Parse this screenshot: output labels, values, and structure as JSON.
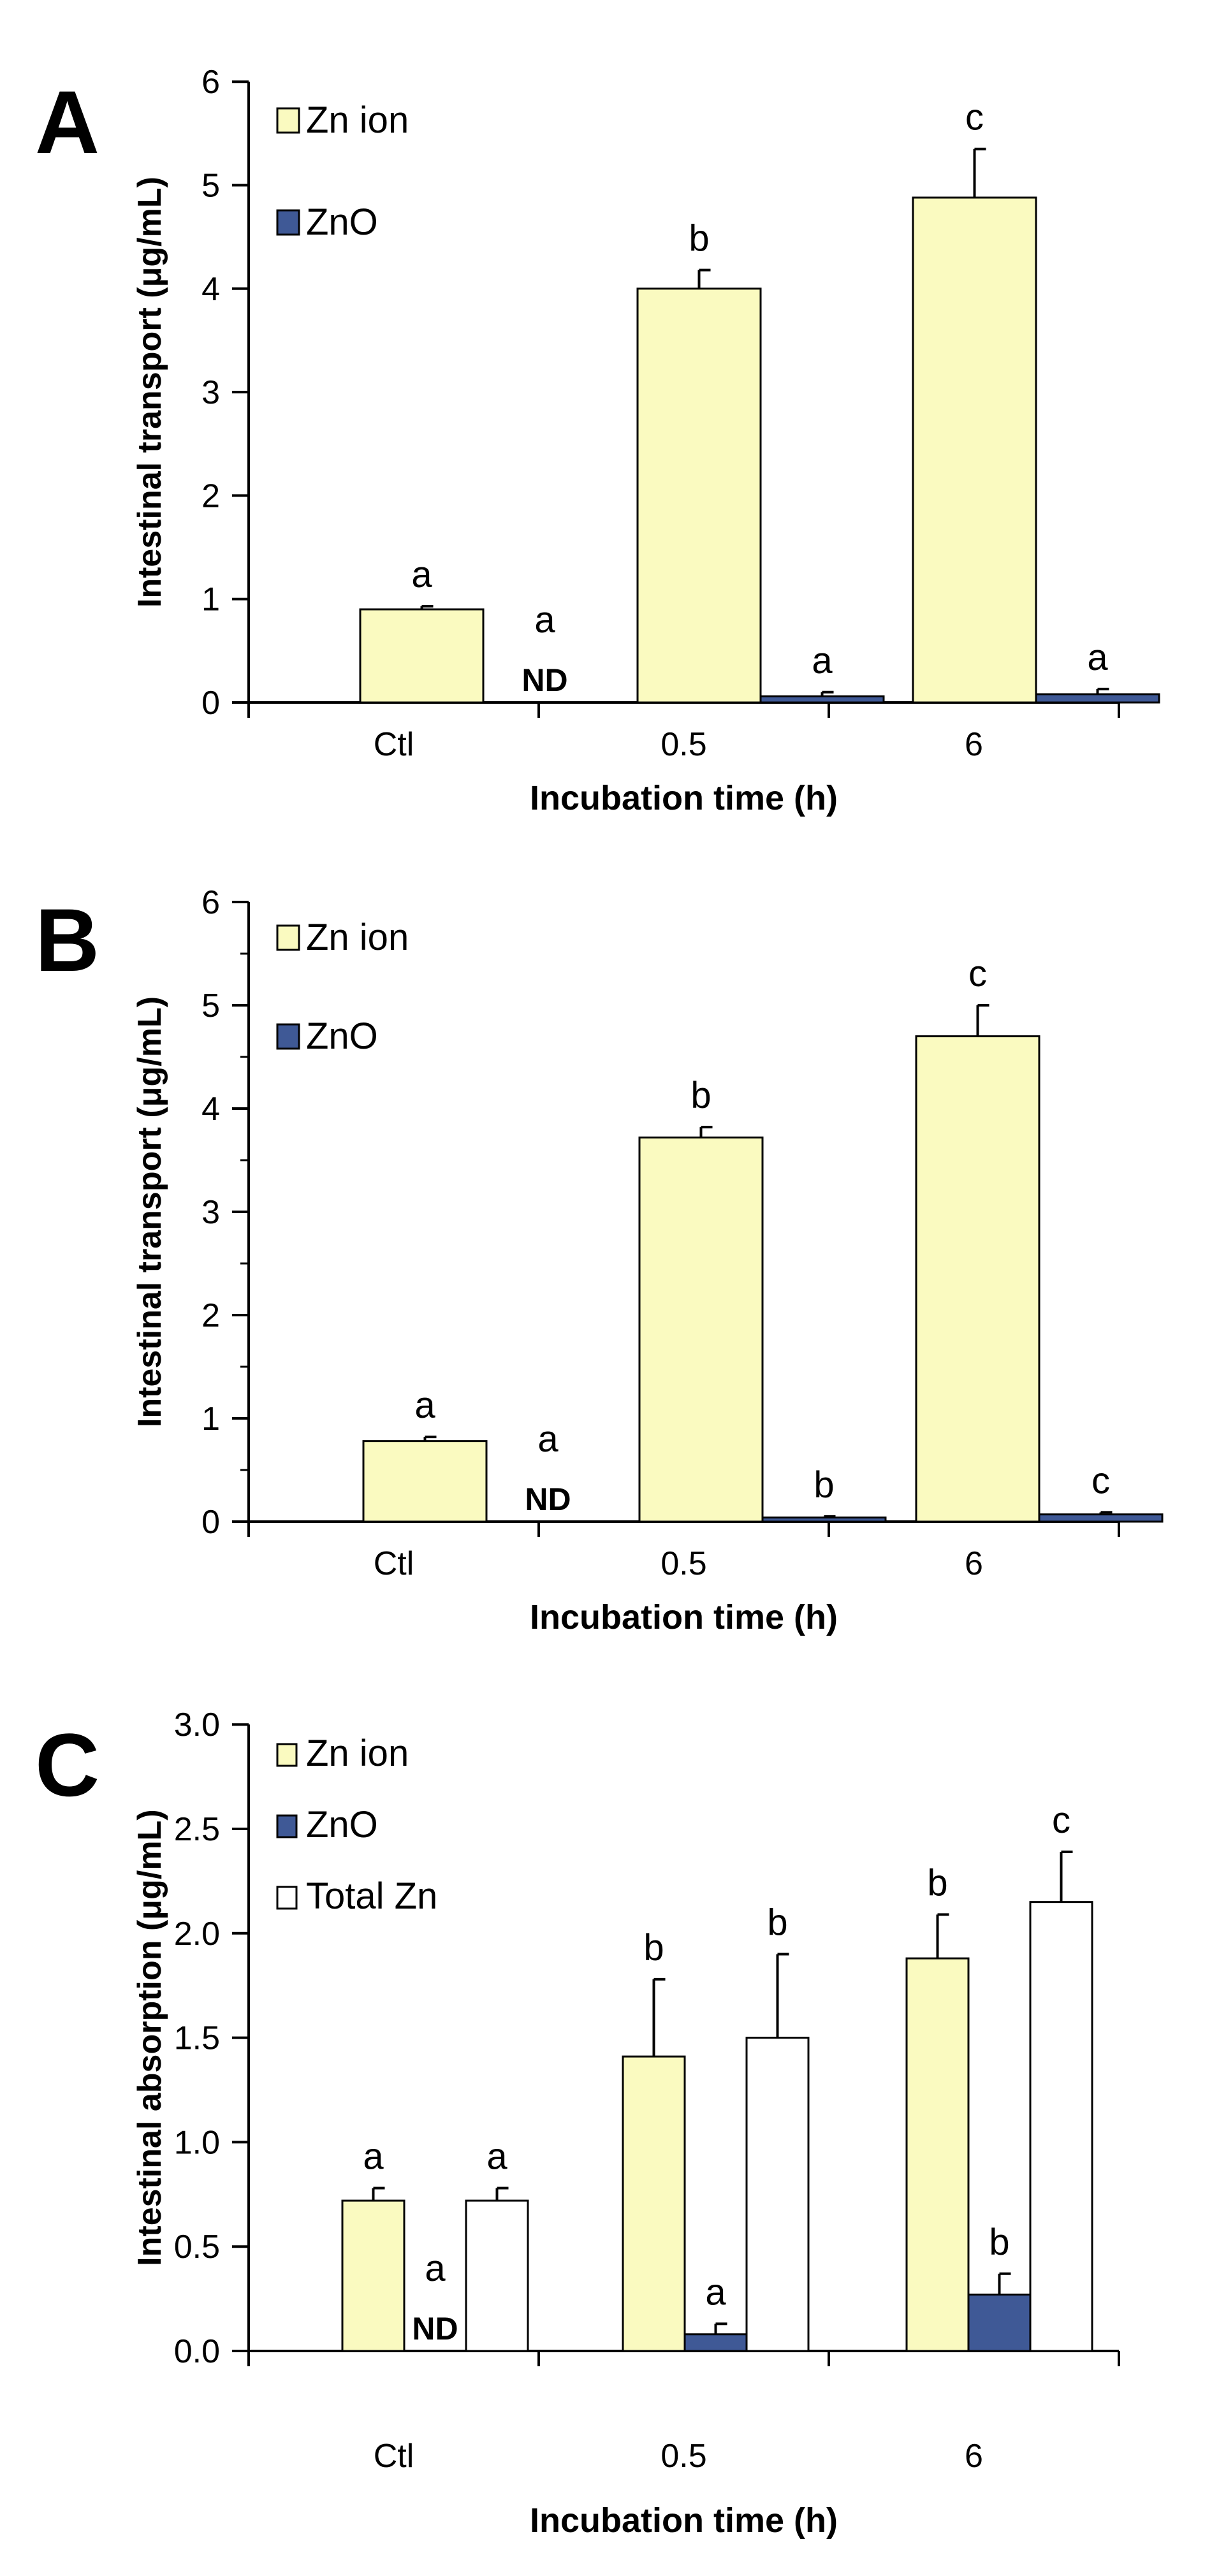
{
  "figure": {
    "background": "#ffffff"
  },
  "colors": {
    "zn_ion": "#FAFAC0",
    "zno": "#3F5996",
    "total_zn": "#FFFFFF",
    "stroke": "#000000"
  },
  "chart_data": [
    {
      "type": "bar",
      "panel": "A",
      "xlabel": "Incubation time (h)",
      "ylabel": "Intestinal transport (μg/mL)",
      "ylim": [
        0,
        6
      ],
      "yticks": [
        "0",
        "1",
        "2",
        "3",
        "4",
        "5",
        "6"
      ],
      "categories": [
        "Ctl",
        "0.5",
        "6"
      ],
      "legend": {
        "placement": "top-left"
      },
      "series": [
        {
          "name": "Zn ion",
          "color_key": "zn_ion",
          "values": [
            0.9,
            4.0,
            4.88
          ],
          "errors": [
            0.03,
            0.18,
            0.47
          ],
          "labels": [
            "a",
            "b",
            "c"
          ]
        },
        {
          "name": "ZnO",
          "color_key": "zno",
          "values": [
            0,
            0.06,
            0.08
          ],
          "errors": [
            0,
            0.04,
            0.05
          ],
          "labels": [
            "a",
            "a",
            "a"
          ]
        }
      ],
      "annotations": [
        {
          "text": "ND",
          "category": "Ctl",
          "series": "ZnO"
        }
      ]
    },
    {
      "type": "bar",
      "panel": "B",
      "xlabel": "Incubation time (h)",
      "ylabel": "Intestinal transport (μg/mL)",
      "ylim": [
        0,
        6
      ],
      "yticks": [
        "0",
        "1",
        "2",
        "3",
        "4",
        "5",
        "6"
      ],
      "categories": [
        "Ctl",
        "0.5",
        "6"
      ],
      "legend": {
        "placement": "top-left"
      },
      "series": [
        {
          "name": "Zn ion",
          "color_key": "zn_ion",
          "values": [
            0.78,
            3.72,
            4.7
          ],
          "errors": [
            0.04,
            0.1,
            0.3
          ],
          "labels": [
            "a",
            "b",
            "c"
          ]
        },
        {
          "name": "ZnO",
          "color_key": "zno",
          "values": [
            0,
            0.04,
            0.07
          ],
          "errors": [
            0,
            0.01,
            0.02
          ],
          "labels": [
            "a",
            "b",
            "c"
          ]
        }
      ],
      "annotations": [
        {
          "text": "ND",
          "category": "Ctl",
          "series": "ZnO"
        }
      ]
    },
    {
      "type": "bar",
      "panel": "C",
      "xlabel": "Incubation time (h)",
      "ylabel": "Intestinal absorption (μg/mL)",
      "ylim": [
        0,
        3
      ],
      "yticks": [
        "0.0",
        "0.5",
        "1.0",
        "1.5",
        "2.0",
        "2.5",
        "3.0"
      ],
      "categories": [
        "Ctl",
        "0.5",
        "6"
      ],
      "legend": {
        "placement": "top-left"
      },
      "series": [
        {
          "name": "Zn ion",
          "color_key": "zn_ion",
          "values": [
            0.72,
            1.41,
            1.88
          ],
          "errors": [
            0.06,
            0.37,
            0.21
          ],
          "labels": [
            "a",
            "b",
            "b"
          ]
        },
        {
          "name": "ZnO",
          "color_key": "zno",
          "values": [
            0,
            0.08,
            0.27
          ],
          "errors": [
            0,
            0.05,
            0.1
          ],
          "labels": [
            "a",
            "a",
            "b"
          ]
        },
        {
          "name": "Total Zn",
          "color_key": "total_zn",
          "values": [
            0.72,
            1.5,
            2.15
          ],
          "errors": [
            0.06,
            0.4,
            0.24
          ],
          "labels": [
            "a",
            "b",
            "c"
          ]
        }
      ],
      "annotations": [
        {
          "text": "ND",
          "category": "Ctl",
          "series": "ZnO"
        }
      ]
    }
  ]
}
